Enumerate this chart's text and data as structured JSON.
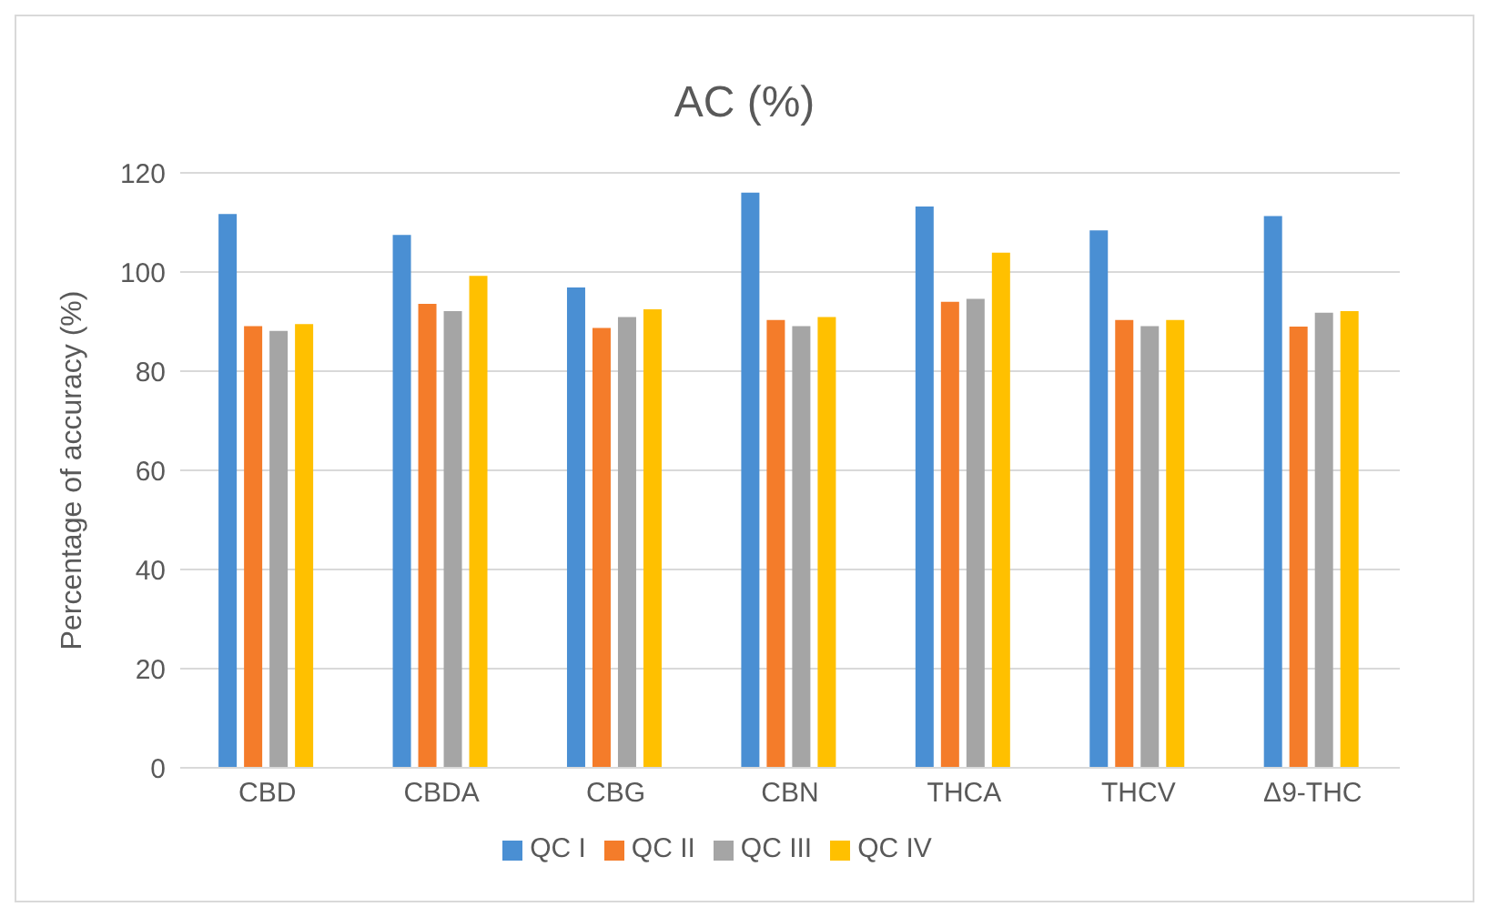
{
  "chart_data": {
    "type": "bar",
    "title": "AC (%)",
    "ylabel": "Percentage of accuracy (%)",
    "categories": [
      "CBD",
      "CBDA",
      "CBG",
      "CBN",
      "THCA",
      "THCV",
      "Δ9-THC"
    ],
    "series": [
      {
        "name": "QC I",
        "color": "#4a8fd3",
        "values": [
          111.7,
          107.5,
          96.9,
          116.0,
          113.2,
          108.4,
          111.3
        ]
      },
      {
        "name": "QC II",
        "color": "#f47c2a",
        "values": [
          89.1,
          93.6,
          88.7,
          90.3,
          94.0,
          90.3,
          89.0
        ]
      },
      {
        "name": "QC III",
        "color": "#a5a5a5",
        "values": [
          88.1,
          92.1,
          90.9,
          89.1,
          94.6,
          89.1,
          91.8
        ]
      },
      {
        "name": "QC IV",
        "color": "#ffc000",
        "values": [
          89.5,
          99.2,
          92.5,
          90.9,
          103.9,
          90.3,
          92.1
        ]
      }
    ],
    "ylim": [
      0,
      120
    ],
    "yticks": [
      0,
      20,
      40,
      60,
      80,
      100,
      120
    ],
    "grid": "y",
    "legend": "bottom"
  }
}
